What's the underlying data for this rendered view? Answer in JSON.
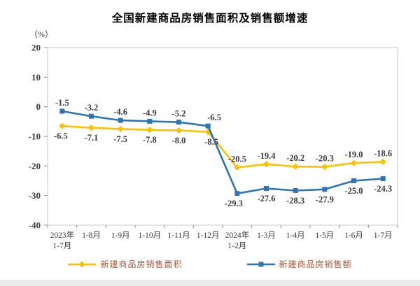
{
  "chart_data": {
    "type": "line",
    "title": "全国新建商品房销售面积及销售额增速",
    "unit_label": "（%）",
    "y_axis": {
      "min": -40,
      "max": 20,
      "step": 10,
      "tick_labels": [
        "20",
        "10",
        "0",
        "-10",
        "-20",
        "-30",
        "-40"
      ]
    },
    "categories": [
      "2023年\n1-7月",
      "1-8月",
      "1-9月",
      "1-10月",
      "1-11月",
      "1-12月",
      "2024年\n1-2月",
      "1-3月",
      "1-4月",
      "1-5月",
      "1-6月",
      "1-7月"
    ],
    "series": [
      {
        "name": "新建商品房销售面积",
        "color": "#FFC000",
        "marker": "diamond",
        "values": [
          -6.5,
          -7.1,
          -7.5,
          -7.8,
          -8.0,
          -8.5,
          -20.5,
          -19.4,
          -20.2,
          -20.3,
          -19.0,
          -18.6
        ],
        "labels": [
          "-6.5",
          "-7.1",
          "-7.5",
          "-7.8",
          "-8.0",
          "-8.5",
          "-20.5",
          "-19.4",
          "-20.2",
          "-20.3",
          "-19.0",
          "-18.6"
        ],
        "label_positions": [
          "below",
          "below",
          "below",
          "below",
          "below",
          "below",
          "above",
          "above",
          "above",
          "above",
          "above",
          "above"
        ]
      },
      {
        "name": "新建商品房销售额",
        "color": "#2E75B6",
        "marker": "square",
        "values": [
          -1.5,
          -3.2,
          -4.6,
          -4.9,
          -5.2,
          -6.5,
          -29.3,
          -27.6,
          -28.3,
          -27.9,
          -25.0,
          -24.3
        ],
        "labels": [
          "-1.5",
          "-3.2",
          "-4.6",
          "-4.9",
          "-5.2",
          "-6.5",
          "-29.3",
          "-27.6",
          "-28.3",
          "-27.9",
          "-25.0",
          "-24.3"
        ],
        "label_positions": [
          "above",
          "above",
          "above",
          "above",
          "above",
          "above",
          "below",
          "below",
          "below",
          "below",
          "below",
          "below"
        ]
      }
    ],
    "legend_position": "bottom",
    "grid": false,
    "colors": {
      "axis_text": "#3b3b3b",
      "data_label_text": "#3b3b3b",
      "legend_text": "#A85A3C",
      "plot_border": "#c9c9c9",
      "tick": "#8c8c8c",
      "series_area": "#FFC000",
      "series_amount": "#2E75B6"
    }
  }
}
